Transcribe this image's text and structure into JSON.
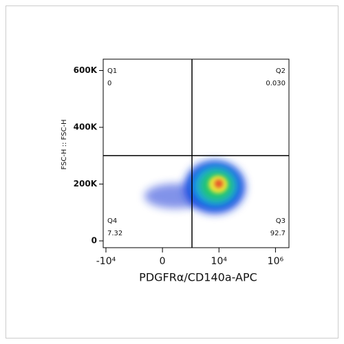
{
  "chart_data": {
    "type": "scatter",
    "x_label": "PDGFRα/CD140a-APC",
    "y_label": "FSC-H :: FSC-H",
    "xscale": "biexponential",
    "xlim": [
      -12500,
      3000000
    ],
    "ylim": [
      -24000,
      640000
    ],
    "xticks": [
      {
        "value": -10000,
        "label": "-10⁴"
      },
      0,
      {
        "value": 10000,
        "label": "10⁴"
      },
      {
        "value": 1000000,
        "label": "10⁶"
      }
    ],
    "yticks": [
      0,
      {
        "value": 200000,
        "label": "200K"
      },
      {
        "value": 400000,
        "label": "400K"
      },
      {
        "value": 600000,
        "label": "600K"
      }
    ],
    "gates": {
      "x": 1100,
      "y": 300000
    },
    "quadrants": {
      "names": [
        "Q1",
        "Q2",
        "Q3",
        "Q4"
      ],
      "values": [
        0,
        0.03,
        92.7,
        7.32
      ],
      "value_labels": [
        "0",
        "0.030",
        "92.7",
        "7.32"
      ]
    }
  }
}
